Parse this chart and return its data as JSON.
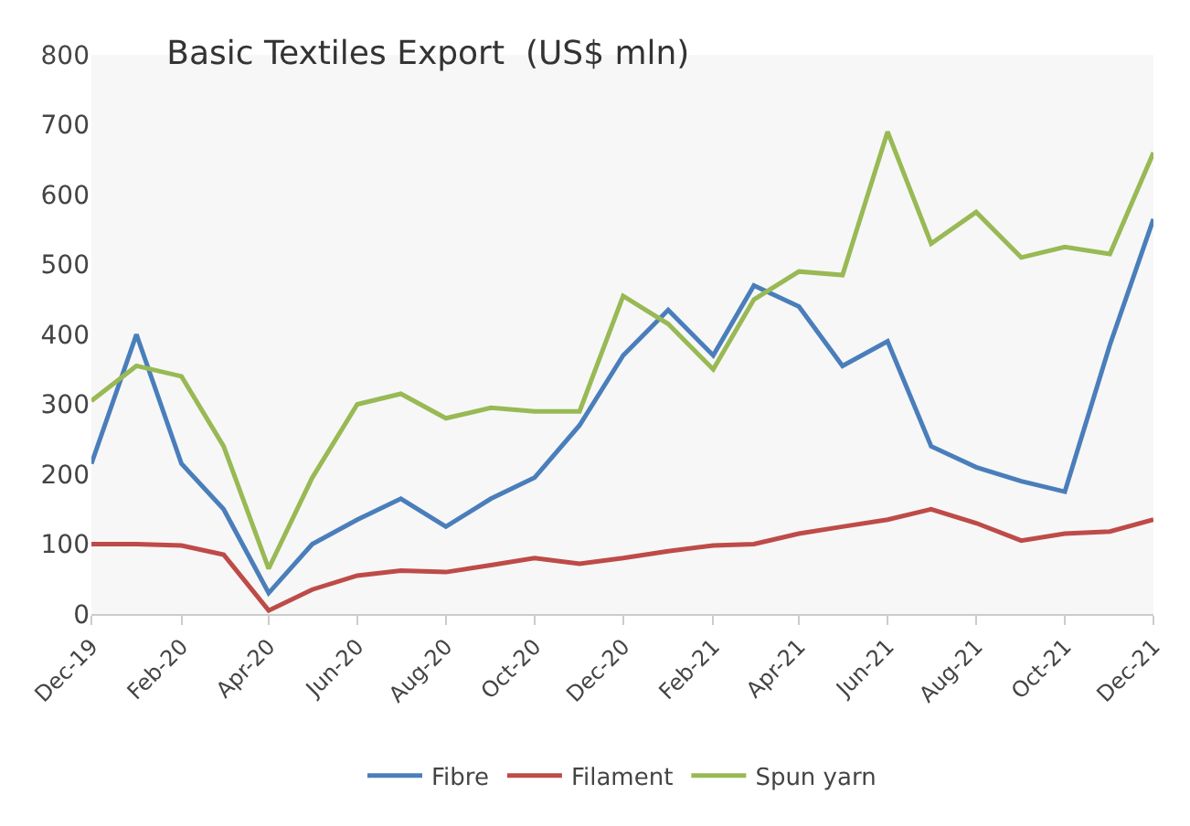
{
  "chart_data": {
    "type": "line",
    "title": "Basic Textiles Export  (US$ mln)",
    "x": [
      "2019-12",
      "2020-01",
      "2020-02",
      "2020-03",
      "2020-04",
      "2020-05",
      "2020-06",
      "2020-07",
      "2020-08",
      "2020-09",
      "2020-10",
      "2020-11",
      "2020-12",
      "2021-01",
      "2021-02",
      "2021-03",
      "2021-04",
      "2021-05",
      "2021-06",
      "2021-07",
      "2021-08",
      "2021-09",
      "2021-10",
      "2021-11",
      "2021-12"
    ],
    "series": [
      {
        "name": "Fibre",
        "color": "#4a7ebb",
        "values": [
          215,
          400,
          215,
          150,
          30,
          100,
          135,
          165,
          125,
          165,
          195,
          270,
          370,
          435,
          370,
          470,
          440,
          355,
          390,
          240,
          210,
          190,
          175,
          385,
          565
        ]
      },
      {
        "name": "Filament",
        "color": "#be4b48",
        "values": [
          100,
          100,
          98,
          85,
          5,
          35,
          55,
          62,
          60,
          70,
          80,
          72,
          80,
          90,
          98,
          100,
          115,
          125,
          135,
          150,
          130,
          105,
          115,
          118,
          135
        ]
      },
      {
        "name": "Spun yarn",
        "color": "#98b954",
        "values": [
          305,
          355,
          340,
          240,
          65,
          195,
          300,
          315,
          280,
          295,
          290,
          290,
          455,
          415,
          350,
          450,
          490,
          485,
          690,
          530,
          575,
          510,
          525,
          515,
          660
        ]
      }
    ],
    "xlim": [
      "2019-12",
      "2021-12"
    ],
    "xticks": [
      {
        "value": "2019-12",
        "label": "Dec-19"
      },
      {
        "value": "2020-02",
        "label": "Feb-20"
      },
      {
        "value": "2020-04",
        "label": "Apr-20"
      },
      {
        "value": "2020-06",
        "label": "Jun-20"
      },
      {
        "value": "2020-08",
        "label": "Aug-20"
      },
      {
        "value": "2020-10",
        "label": "Oct-20"
      },
      {
        "value": "2020-12",
        "label": "Dec-20"
      },
      {
        "value": "2021-02",
        "label": "Feb-21"
      },
      {
        "value": "2021-04",
        "label": "Apr-21"
      },
      {
        "value": "2021-06",
        "label": "Jun-21"
      },
      {
        "value": "2021-08",
        "label": "Aug-21"
      },
      {
        "value": "2021-10",
        "label": "Oct-21"
      },
      {
        "value": "2021-12",
        "label": "Dec-21"
      }
    ],
    "ylim": [
      0,
      800
    ],
    "yticks": [
      0,
      100,
      200,
      300,
      400,
      500,
      600,
      700,
      800
    ],
    "grid": false,
    "legend": "bottom",
    "marker": "none",
    "line_style": "solid"
  }
}
